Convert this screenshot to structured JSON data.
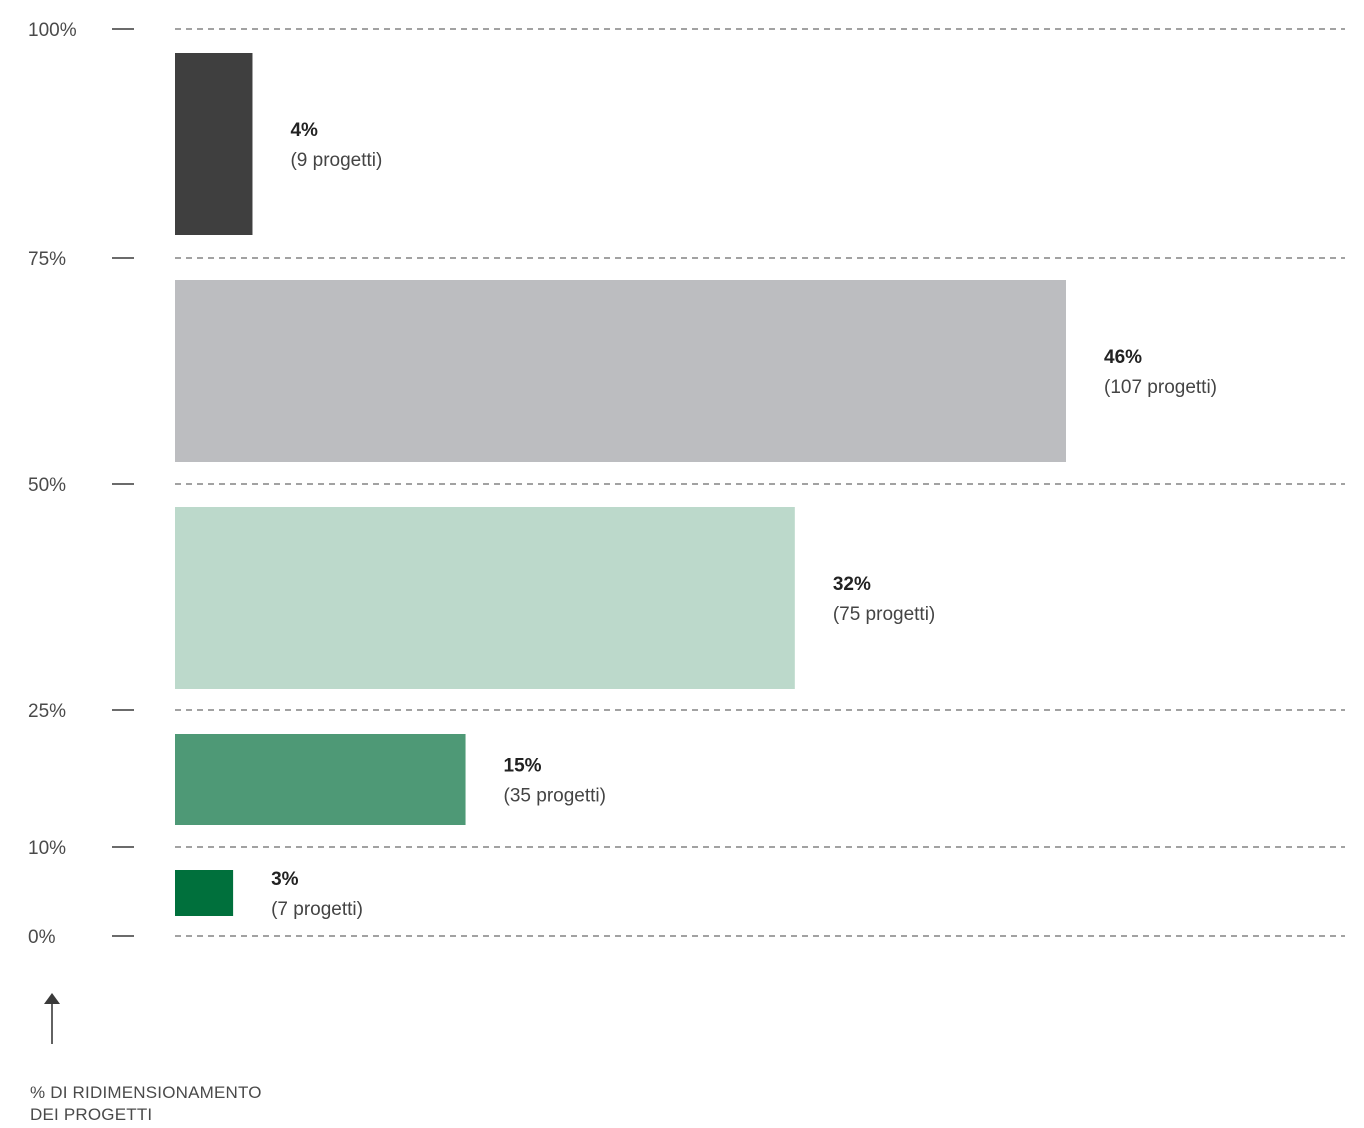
{
  "chart_data": {
    "type": "bar",
    "orientation": "horizontal",
    "y_axis_ticks": [
      "100%",
      "75%",
      "50%",
      "25%",
      "10%",
      "0%"
    ],
    "y_axis_title_lines": [
      "% DI RIDIMENSIONAMENTO",
      "DEI PROGETTI"
    ],
    "grid": "dashed horizontal",
    "bars": [
      {
        "band": "75%–100%",
        "value": 4,
        "label_pct": "4%",
        "label_count": "(9 progetti)",
        "color": "#3f3f3f"
      },
      {
        "band": "50%–75%",
        "value": 46,
        "label_pct": "46%",
        "label_count": "(107 progetti)",
        "color": "#bcbdc0"
      },
      {
        "band": "25%–50%",
        "value": 32,
        "label_pct": "32%",
        "label_count": "(75 progetti)",
        "color": "#bcd9cb"
      },
      {
        "band": "10%–25%",
        "value": 15,
        "label_pct": "15%",
        "label_count": "(35 progetti)",
        "color": "#4e9976"
      },
      {
        "band": "0%–10%",
        "value": 3,
        "label_pct": "3%",
        "label_count": "(7 progetti)",
        "color": "#00703c"
      }
    ]
  }
}
